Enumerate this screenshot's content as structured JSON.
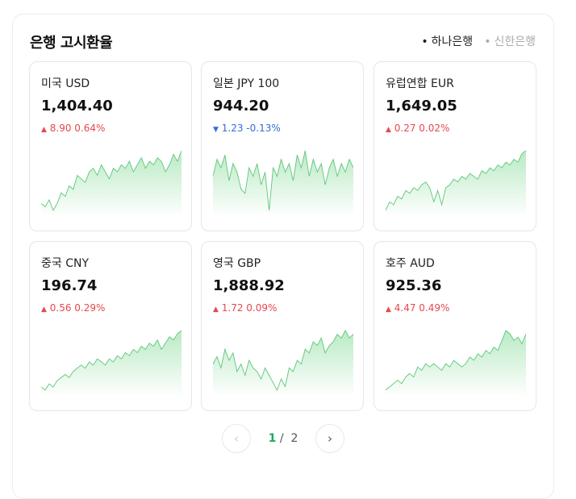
{
  "header": {
    "title": "은행 고시환율",
    "banks": [
      {
        "label": "하나은행",
        "active": true
      },
      {
        "label": "신한은행",
        "active": false
      }
    ]
  },
  "colors": {
    "up": "#e5484d",
    "down": "#2f6fd6",
    "line": "#5cc77a",
    "accent": "#1fa85a"
  },
  "cards": [
    {
      "name": "미국 USD",
      "price": "1,404.40",
      "direction": "up",
      "change": "8.90 0.64%",
      "spark": [
        3,
        2,
        4,
        1,
        3,
        6,
        5,
        8,
        7,
        11,
        10,
        9,
        12,
        13,
        11,
        14,
        12,
        10,
        13,
        12,
        14,
        13,
        15,
        12,
        14,
        16,
        13,
        15,
        14,
        16,
        15,
        12,
        14,
        17,
        15,
        18
      ]
    },
    {
      "name": "일본 JPY 100",
      "price": "944.20",
      "direction": "down",
      "change": "1.23 -0.13%",
      "spark": [
        10,
        14,
        12,
        15,
        9,
        13,
        11,
        7,
        6,
        12,
        10,
        13,
        8,
        11,
        2,
        12,
        10,
        14,
        11,
        13,
        9,
        15,
        12,
        16,
        10,
        14,
        11,
        13,
        8,
        12,
        14,
        10,
        13,
        11,
        14,
        12
      ]
    },
    {
      "name": "유럽연합 EUR",
      "price": "1,649.05",
      "direction": "up",
      "change": "0.27 0.02%",
      "spark": [
        1,
        4,
        3,
        6,
        5,
        8,
        7,
        9,
        8,
        10,
        11,
        9,
        4,
        8,
        3,
        9,
        10,
        12,
        11,
        13,
        12,
        14,
        13,
        12,
        15,
        14,
        16,
        15,
        17,
        16,
        18,
        17,
        19,
        18,
        21,
        22
      ]
    },
    {
      "name": "중국 CNY",
      "price": "196.74",
      "direction": "up",
      "change": "0.56 0.29%",
      "spark": [
        2,
        1,
        3,
        2,
        4,
        5,
        6,
        5,
        7,
        8,
        9,
        8,
        10,
        9,
        11,
        10,
        9,
        11,
        10,
        12,
        11,
        13,
        12,
        14,
        13,
        15,
        14,
        16,
        15,
        17,
        14,
        16,
        18,
        17,
        19,
        20
      ]
    },
    {
      "name": "영국 GBP",
      "price": "1,888.92",
      "direction": "up",
      "change": "1.72 0.09%",
      "spark": [
        9,
        11,
        8,
        13,
        10,
        12,
        7,
        9,
        6,
        10,
        8,
        7,
        5,
        8,
        6,
        4,
        2,
        5,
        3,
        8,
        7,
        10,
        9,
        13,
        12,
        15,
        14,
        16,
        12,
        14,
        15,
        17,
        16,
        18,
        16,
        17
      ]
    },
    {
      "name": "호주 AUD",
      "price": "925.36",
      "direction": "up",
      "change": "4.47 0.49%",
      "spark": [
        1,
        2,
        3,
        4,
        3,
        5,
        6,
        5,
        8,
        7,
        9,
        8,
        9,
        8,
        7,
        9,
        8,
        10,
        9,
        8,
        9,
        11,
        10,
        12,
        11,
        13,
        12,
        14,
        13,
        16,
        19,
        18,
        16,
        17,
        15,
        18
      ]
    }
  ],
  "pager": {
    "prev": "‹",
    "current": "1",
    "separator": "/",
    "total": "2",
    "next": "›"
  }
}
